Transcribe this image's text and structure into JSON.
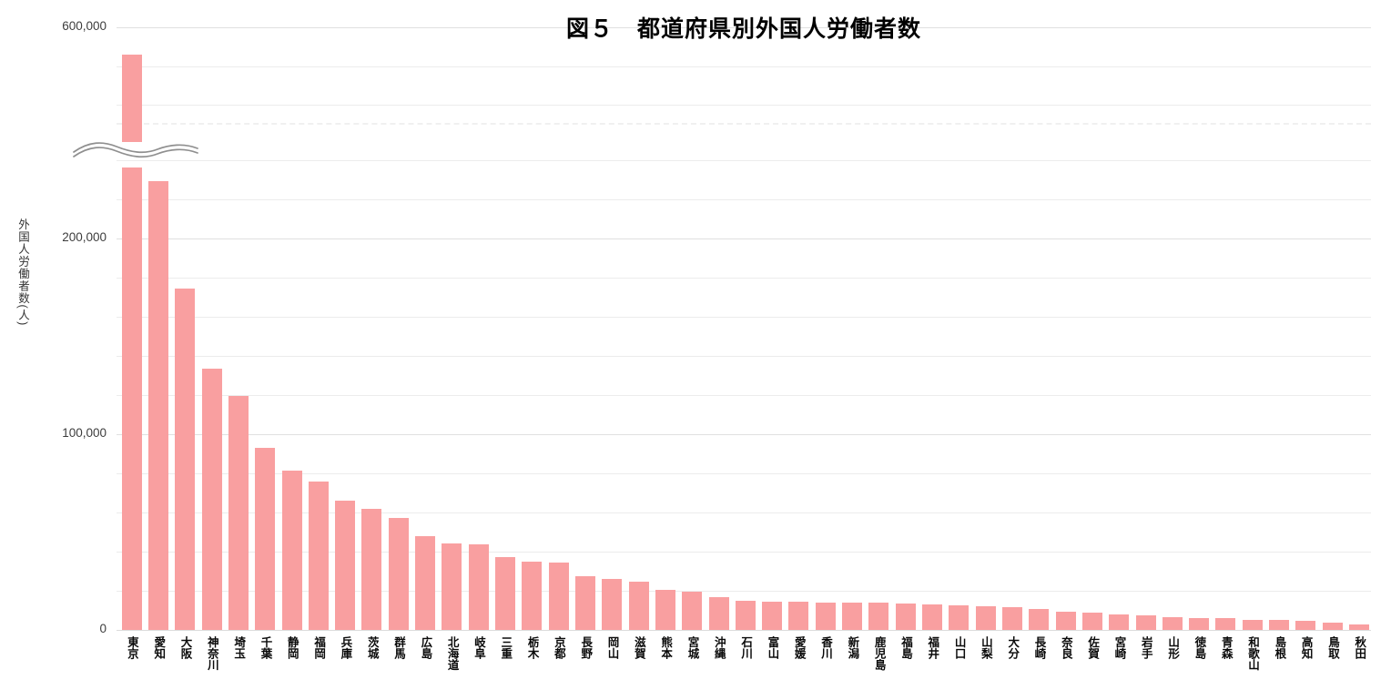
{
  "title": "図５　都道府県別外国人労働者数",
  "y_axis": {
    "label": "外国人労働者数(人)",
    "tick_labels": [
      "600,000",
      "200,000",
      "100,000",
      "0"
    ]
  },
  "chart_data": {
    "type": "bar",
    "title": "図５　都道府県別外国人労働者数",
    "xlabel": "",
    "ylabel": "外国人労働者数(人)",
    "bar_color": "#f99fa0",
    "grid": true,
    "gridline_step": 20000,
    "axis_break": {
      "enabled": true,
      "lower_panel_max": 240000,
      "top_tick": 600000,
      "broken_category": "東京"
    },
    "ylim": [
      0,
      600000
    ],
    "categories": [
      "東京",
      "愛知",
      "大阪",
      "神奈川",
      "埼玉",
      "千葉",
      "静岡",
      "福岡",
      "兵庫",
      "茨城",
      "群馬",
      "広島",
      "北海道",
      "岐阜",
      "三重",
      "栃木",
      "京都",
      "長野",
      "岡山",
      "滋賀",
      "熊本",
      "宮城",
      "沖縄",
      "石川",
      "富山",
      "愛媛",
      "香川",
      "新潟",
      "鹿児島",
      "福島",
      "福井",
      "山口",
      "山梨",
      "大分",
      "長崎",
      "奈良",
      "佐賀",
      "宮崎",
      "岩手",
      "山形",
      "徳島",
      "青森",
      "和歌山",
      "島根",
      "高知",
      "鳥取",
      "秋田"
    ],
    "values": [
      585000,
      229500,
      174500,
      133500,
      119500,
      93000,
      81500,
      76000,
      66000,
      62000,
      57000,
      48000,
      44000,
      43500,
      37000,
      35000,
      34500,
      27500,
      26000,
      24500,
      20500,
      19500,
      16800,
      15000,
      14500,
      14300,
      14000,
      13900,
      13800,
      13300,
      13000,
      12500,
      12100,
      11600,
      10700,
      9300,
      8700,
      7800,
      7600,
      6300,
      6100,
      6000,
      5200,
      5100,
      4700,
      3800,
      3000
    ]
  }
}
